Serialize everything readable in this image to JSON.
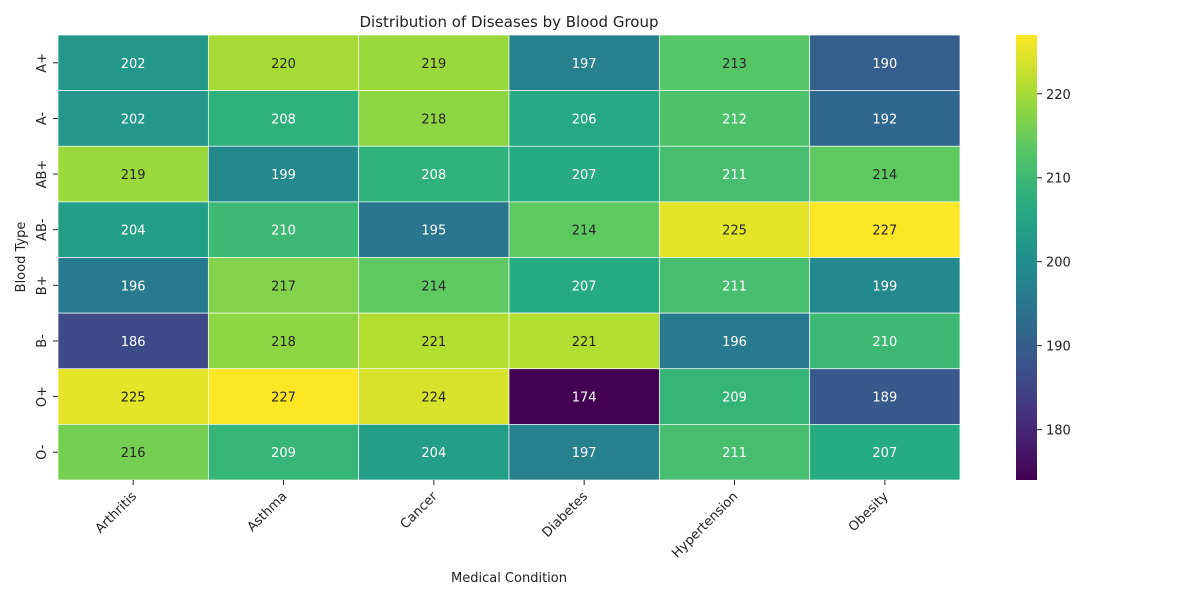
{
  "chart_data": {
    "type": "heatmap",
    "title": "Distribution of Diseases by Blood Group",
    "xlabel": "Medical Condition",
    "ylabel": "Blood Type",
    "x_categories": [
      "Arthritis",
      "Asthma",
      "Cancer",
      "Diabetes",
      "Hypertension",
      "Obesity"
    ],
    "y_categories": [
      "A+",
      "A-",
      "AB+",
      "AB-",
      "B+",
      "B-",
      "O+",
      "O-"
    ],
    "values": [
      [
        202,
        220,
        219,
        197,
        213,
        190
      ],
      [
        202,
        208,
        218,
        206,
        212,
        192
      ],
      [
        219,
        199,
        208,
        207,
        211,
        214
      ],
      [
        204,
        210,
        195,
        214,
        225,
        227
      ],
      [
        196,
        217,
        214,
        207,
        211,
        199
      ],
      [
        186,
        218,
        221,
        221,
        196,
        210
      ],
      [
        225,
        227,
        224,
        174,
        209,
        189
      ],
      [
        216,
        209,
        204,
        197,
        211,
        207
      ]
    ],
    "colormap": "viridis",
    "color_range": [
      174,
      227
    ],
    "colorbar_ticks": [
      180,
      190,
      200,
      210,
      220
    ],
    "annotations": true,
    "grid": false,
    "legend": "colorbar-right"
  }
}
